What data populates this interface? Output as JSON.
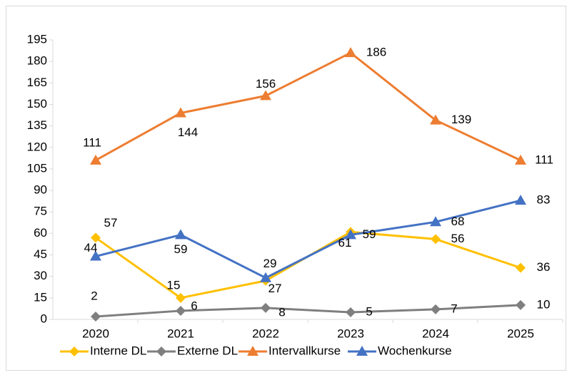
{
  "chart_data": {
    "type": "line",
    "categories": [
      "2020",
      "2021",
      "2022",
      "2023",
      "2024",
      "2025"
    ],
    "series": [
      {
        "name": "Interne DL",
        "color": "#FFC000",
        "marker": "diamond",
        "values": [
          57,
          15,
          27,
          61,
          56,
          36
        ]
      },
      {
        "name": "Externe DL",
        "color": "#7F7F7F",
        "marker": "diamond",
        "values": [
          2,
          6,
          8,
          5,
          7,
          10
        ]
      },
      {
        "name": "Intervallkurse",
        "color": "#ED7D31",
        "marker": "triangle",
        "values": [
          111,
          144,
          156,
          186,
          139,
          111
        ]
      },
      {
        "name": "Wochenkurse",
        "color": "#4472C4",
        "marker": "triangle",
        "values": [
          44,
          59,
          29,
          59,
          68,
          83
        ]
      }
    ],
    "ylim": [
      0,
      195
    ],
    "yticks": [
      0,
      15,
      30,
      45,
      60,
      75,
      90,
      105,
      120,
      135,
      150,
      165,
      180,
      195
    ],
    "grid": false,
    "legend": "bottom"
  }
}
